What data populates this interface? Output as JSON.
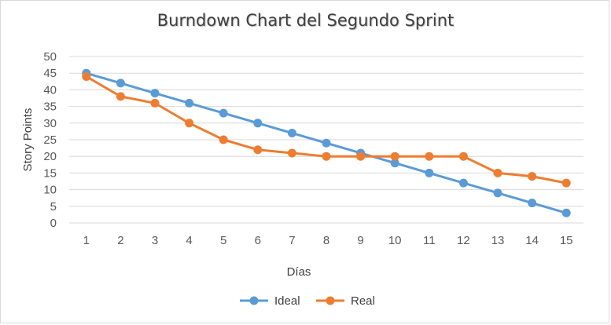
{
  "chart_data": {
    "type": "line",
    "title": "Burndown Chart del Segundo Sprint",
    "xlabel": "Días",
    "ylabel": "Story Points",
    "categories": [
      "1",
      "2",
      "3",
      "4",
      "5",
      "6",
      "7",
      "8",
      "9",
      "10",
      "11",
      "12",
      "13",
      "14",
      "15"
    ],
    "ylim": [
      0,
      50
    ],
    "yticks": [
      0,
      5,
      10,
      15,
      20,
      25,
      30,
      35,
      40,
      45,
      50
    ],
    "grid": true,
    "legend": "bottom",
    "series": [
      {
        "name": "Ideal",
        "color": "#5b9bd5",
        "values": [
          45,
          42,
          39,
          36,
          33,
          30,
          27,
          24,
          21,
          18,
          15,
          12,
          9,
          6,
          3
        ]
      },
      {
        "name": "Real",
        "color": "#ed7d31",
        "values": [
          44,
          38,
          36,
          30,
          25,
          22,
          21,
          20,
          20,
          20,
          20,
          20,
          15,
          14,
          12
        ]
      }
    ]
  }
}
